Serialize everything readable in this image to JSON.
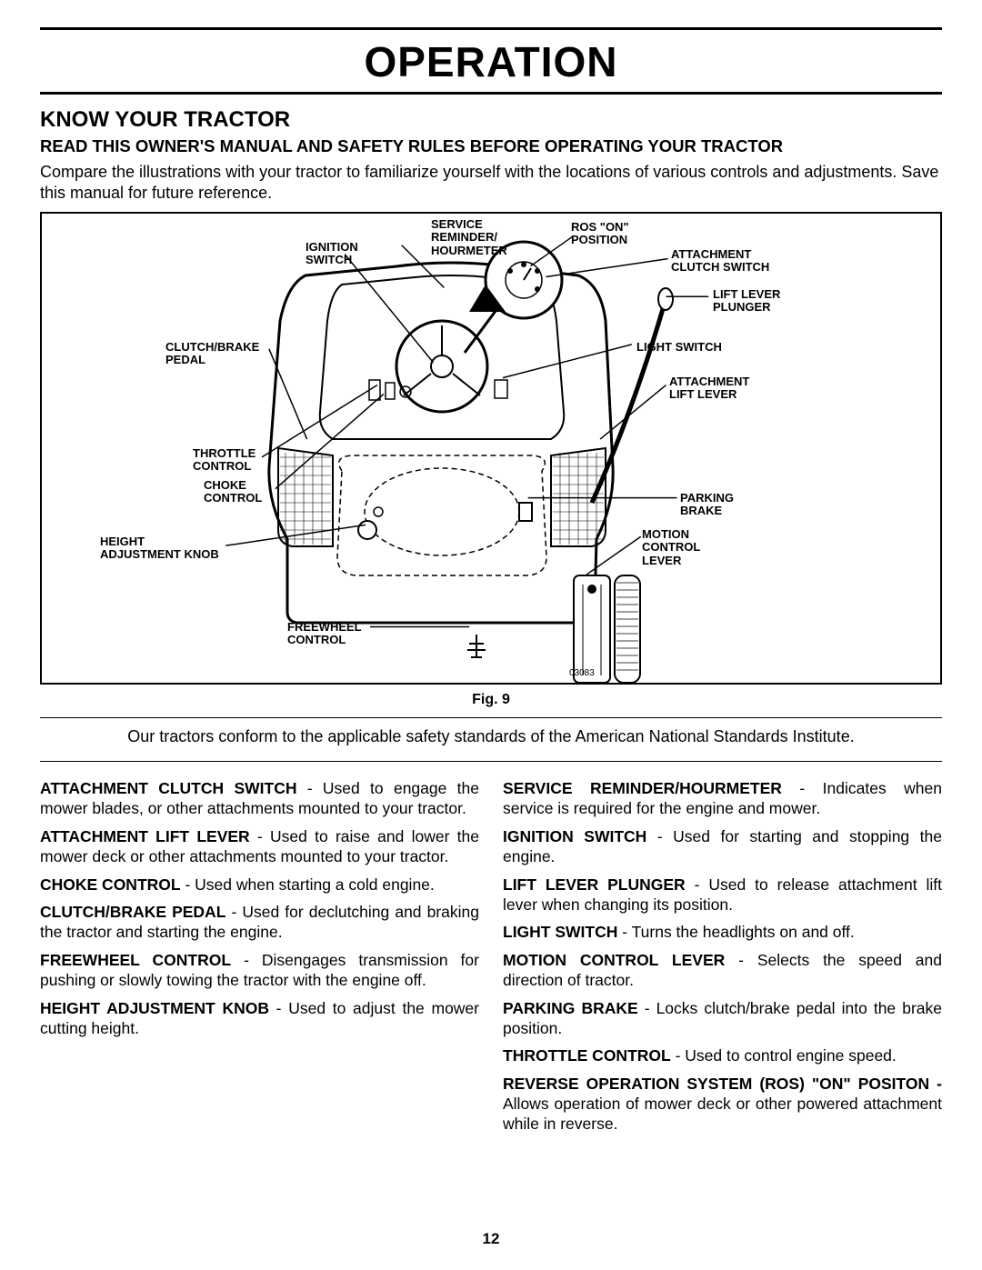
{
  "page": {
    "title": "OPERATION",
    "section_title": "KNOW YOUR TRACTOR",
    "subheading": "READ THIS OWNER'S MANUAL AND SAFETY RULES BEFORE OPERATING YOUR TRACTOR",
    "intro": "Compare the illustrations with your tractor to familiarize yourself with the locations of various controls and adjustments. Save this manual for future reference.",
    "figure_caption": "Fig. 9",
    "part_number": "03083",
    "conformance": "Our tractors conform to the applicable safety standards of the American National Standards Institute.",
    "page_number": "12"
  },
  "diagram_labels": {
    "service_reminder": "SERVICE\nREMINDER/\nHOURMETER",
    "ignition_switch": "IGNITION\nSWITCH",
    "ros_on": "ROS \"ON\"\nPOSITION",
    "attachment_clutch": "ATTACHMENT\nCLUTCH SWITCH",
    "lift_lever_plunger": "LIFT LEVER\nPLUNGER",
    "clutch_brake_pedal": "CLUTCH/BRAKE\nPEDAL",
    "light_switch": "LIGHT SWITCH",
    "attachment_lift": "ATTACHMENT\nLIFT LEVER",
    "throttle_control": "THROTTLE\nCONTROL",
    "choke_control": "CHOKE\nCONTROL",
    "parking_brake": "PARKING\nBRAKE",
    "height_adjustment": "HEIGHT\nADJUSTMENT KNOB",
    "motion_control": "MOTION\nCONTROL\nLEVER",
    "freewheel_control": "FREEWHEEL\nCONTROL"
  },
  "definitions": {
    "left": [
      {
        "term": "ATTACHMENT CLUTCH SWITCH",
        "text": " - Used to engage the mower blades, or other attachments mounted to your tractor."
      },
      {
        "term": "ATTACHMENT LIFT LEVER",
        "text": " - Used to raise and lower the mower deck or other attachments mounted to your tractor."
      },
      {
        "term": "CHOKE CONTROL",
        "text": " - Used when starting a cold engine."
      },
      {
        "term": "CLUTCH/BRAKE PEDAL",
        "text": " - Used for declutching and braking the tractor and starting the engine."
      },
      {
        "term": "FREEWHEEL CONTROL",
        "text": " - Disengages transmission for pushing or slowly towing the tractor with the engine off."
      },
      {
        "term": "HEIGHT ADJUSTMENT KNOB",
        "text": " - Used to adjust the mower cutting height."
      }
    ],
    "right": [
      {
        "term": "SERVICE REMINDER/HOURMETER",
        "text": " - Indicates when service is required for the engine and mower."
      },
      {
        "term": "IGNITION SWITCH",
        "text": " - Used for starting and stopping the engine."
      },
      {
        "term": "LIFT LEVER PLUNGER",
        "text": " - Used to release attachment lift lever when changing its position."
      },
      {
        "term": "LIGHT SWITCH",
        "text": " - Turns the headlights on and off."
      },
      {
        "term": "MOTION CONTROL LEVER",
        "text": " - Selects the speed and direction of tractor."
      },
      {
        "term": "PARKING BRAKE",
        "text": " - Locks clutch/brake pedal into the brake position."
      },
      {
        "term": "THROTTLE CONTROL",
        "text": " - Used to control engine speed."
      },
      {
        "term": "REVERSE OPERATION SYSTEM (ROS) \"ON\" POSITON -",
        "text": " Allows operation of mower deck or other powered attachment while in reverse."
      }
    ]
  },
  "colors": {
    "text": "#000000",
    "background": "#ffffff",
    "rule": "#000000"
  }
}
